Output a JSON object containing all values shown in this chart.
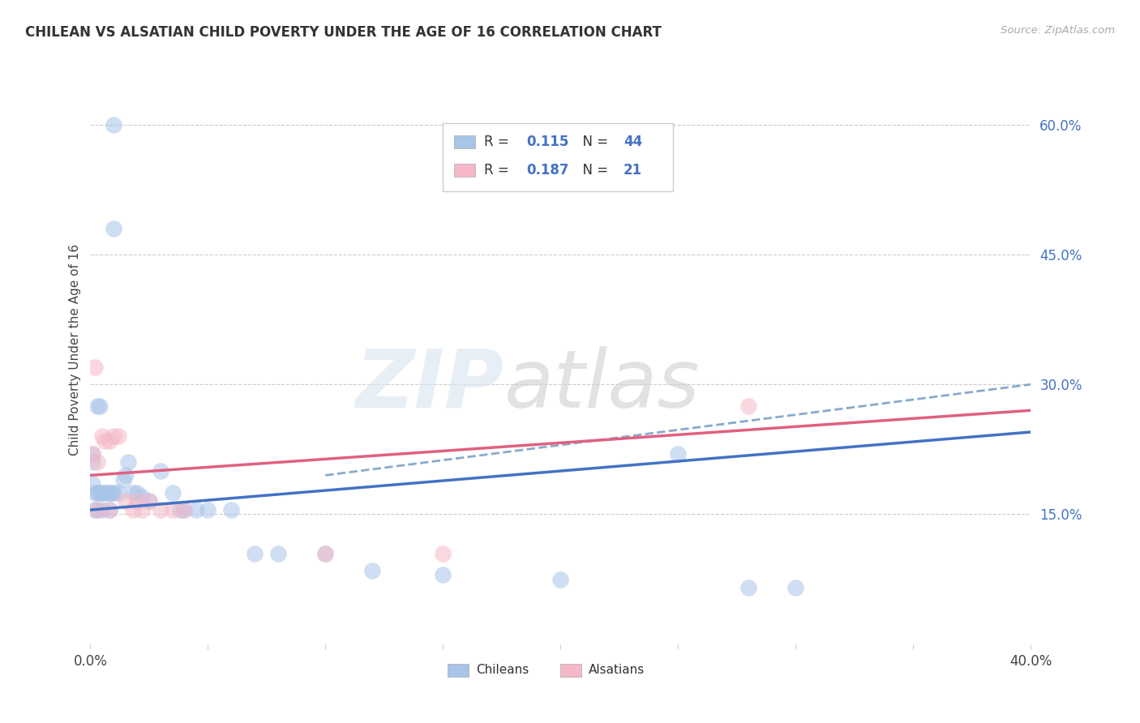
{
  "title": "CHILEAN VS ALSATIAN CHILD POVERTY UNDER THE AGE OF 16 CORRELATION CHART",
  "source": "Source: ZipAtlas.com",
  "ylabel": "Child Poverty Under the Age of 16",
  "xlim": [
    0.0,
    0.4
  ],
  "ylim": [
    0.0,
    0.68
  ],
  "ytick_vals": [
    0.15,
    0.3,
    0.45,
    0.6
  ],
  "ytick_labels": [
    "15.0%",
    "30.0%",
    "45.0%",
    "60.0%"
  ],
  "xtick_vals": [
    0.0,
    0.05,
    0.1,
    0.15,
    0.2,
    0.25,
    0.3,
    0.35,
    0.4
  ],
  "xtick_labels": [
    "0.0%",
    "",
    "",
    "",
    "",
    "",
    "",
    "",
    "40.0%"
  ],
  "grid_color": "#cccccc",
  "background_color": "#ffffff",
  "chilean_color": "#a8c4e8",
  "alsatian_color": "#f5b8c8",
  "chilean_line_color": "#4472c4",
  "alsatian_line_color": "#e06080",
  "dashed_line_color": "#88aacc",
  "legend_R_chilean": "0.115",
  "legend_N_chilean": "44",
  "legend_R_alsatian": "0.187",
  "legend_N_alsatian": "21",
  "watermark_text": "ZIPatlas",
  "chilean_x": [
    0.01,
    0.01,
    0.003,
    0.004,
    0.001,
    0.001,
    0.001,
    0.002,
    0.003,
    0.004,
    0.005,
    0.006,
    0.007,
    0.008,
    0.009,
    0.01,
    0.012,
    0.014,
    0.015,
    0.016,
    0.018,
    0.02,
    0.022,
    0.025,
    0.03,
    0.035,
    0.038,
    0.04,
    0.045,
    0.05,
    0.06,
    0.07,
    0.08,
    0.1,
    0.12,
    0.15,
    0.2,
    0.25,
    0.28,
    0.3,
    0.002,
    0.003,
    0.005,
    0.008
  ],
  "chilean_y": [
    0.6,
    0.48,
    0.275,
    0.275,
    0.22,
    0.21,
    0.185,
    0.175,
    0.175,
    0.175,
    0.175,
    0.175,
    0.175,
    0.175,
    0.175,
    0.175,
    0.175,
    0.19,
    0.195,
    0.21,
    0.175,
    0.175,
    0.17,
    0.165,
    0.2,
    0.175,
    0.155,
    0.155,
    0.155,
    0.155,
    0.155,
    0.105,
    0.105,
    0.105,
    0.085,
    0.08,
    0.075,
    0.22,
    0.065,
    0.065,
    0.155,
    0.155,
    0.155,
    0.155
  ],
  "alsatian_x": [
    0.001,
    0.002,
    0.003,
    0.005,
    0.006,
    0.008,
    0.01,
    0.012,
    0.015,
    0.018,
    0.02,
    0.022,
    0.025,
    0.03,
    0.035,
    0.04,
    0.1,
    0.15,
    0.28,
    0.003,
    0.008
  ],
  "alsatian_y": [
    0.22,
    0.32,
    0.21,
    0.24,
    0.235,
    0.235,
    0.24,
    0.24,
    0.165,
    0.155,
    0.165,
    0.155,
    0.165,
    0.155,
    0.155,
    0.155,
    0.105,
    0.105,
    0.275,
    0.155,
    0.155
  ],
  "blue_line": {
    "x0": 0.0,
    "y0": 0.155,
    "x1": 0.4,
    "y1": 0.245
  },
  "pink_line": {
    "x0": 0.0,
    "y0": 0.195,
    "x1": 0.4,
    "y1": 0.27
  },
  "dashed_line": {
    "x0": 0.1,
    "y0": 0.195,
    "x1": 0.4,
    "y1": 0.3
  }
}
